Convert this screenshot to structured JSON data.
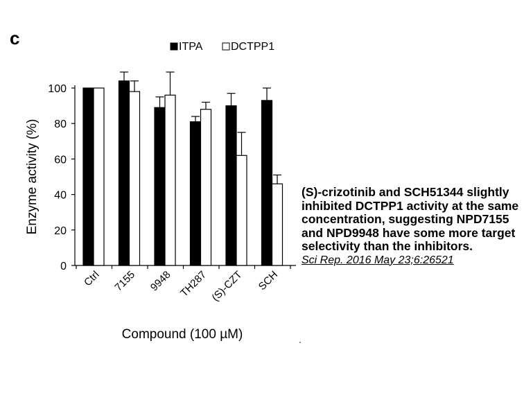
{
  "figure": {
    "panel_label": "c",
    "caption": "(S)-crizotinib and SCH51344 slightly inhibited DCTPP1 activity at the same concentration, suggesting NPD7155 and NPD9948 have some more target selectivity than the inhibitors.",
    "citation": "Sci Rep. 2016 May 23;6:26521"
  },
  "chart_data": {
    "type": "bar",
    "categories": [
      "Ctrl",
      "7155",
      "9948",
      "TH287",
      "(S)-CZT",
      "SCH"
    ],
    "series": [
      {
        "name": "ITPA",
        "values": [
          100,
          104,
          89,
          81,
          90,
          93
        ],
        "errors": [
          0,
          5,
          6,
          3,
          7,
          7
        ],
        "fill": "#000000"
      },
      {
        "name": "DCTPP1",
        "values": [
          100,
          98,
          96,
          88,
          62,
          46
        ],
        "errors": [
          0,
          6,
          13,
          4,
          13,
          5
        ],
        "fill": "#ffffff"
      }
    ],
    "xlabel": "Compound (100 µM)",
    "ylabel": "Enzyme activity (%)",
    "ylim": [
      0,
      100
    ],
    "yticks": [
      0,
      20,
      40,
      60,
      80,
      100
    ],
    "legend_position": "top",
    "grid": false
  }
}
